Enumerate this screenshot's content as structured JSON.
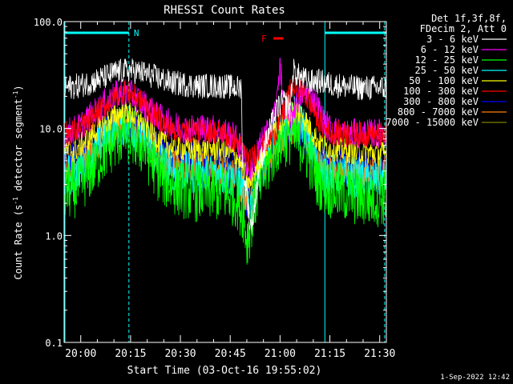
{
  "chart_data": {
    "type": "line",
    "title": "RHESSI Count Rates",
    "xlabel": "Start Time (03-Oct-16 19:55:02)",
    "ylabel_parts": [
      "Count Rate (s",
      "-1",
      " detector segment",
      "-1",
      ")"
    ],
    "yscale": "log",
    "ylim": [
      0.1,
      100
    ],
    "xlim_minutes": [
      0,
      97
    ],
    "y_ticks": [
      {
        "value": 0.1,
        "label": "0.1"
      },
      {
        "value": 1,
        "label": "1.0"
      },
      {
        "value": 10,
        "label": "10.0"
      },
      {
        "value": 100,
        "label": "100.0"
      }
    ],
    "x_ticks": [
      {
        "minute": 5,
        "label": "20:00"
      },
      {
        "minute": 20,
        "label": "20:15"
      },
      {
        "minute": 35,
        "label": "20:30"
      },
      {
        "minute": 50,
        "label": "20:45"
      },
      {
        "minute": 65,
        "label": "21:00"
      },
      {
        "minute": 80,
        "label": "21:15"
      },
      {
        "minute": 95,
        "label": "21:30"
      }
    ],
    "legend_header": [
      "Det 1f,3f,8f,",
      "FDecim 2, Att 0"
    ],
    "legend_placement": "right",
    "series": [
      {
        "name": "3 - 6 keV",
        "color": "#ffffff",
        "points": [
          [
            0,
            24
          ],
          [
            4,
            25
          ],
          [
            8,
            27
          ],
          [
            12,
            30
          ],
          [
            16,
            34
          ],
          [
            20,
            35
          ],
          [
            24,
            33
          ],
          [
            28,
            30
          ],
          [
            32,
            27
          ],
          [
            36,
            26
          ],
          [
            40,
            25
          ],
          [
            44,
            25
          ],
          [
            48,
            25
          ],
          [
            52,
            24
          ],
          [
            53.5,
            24
          ],
          [
            53.6,
            5
          ],
          [
            54,
            4
          ],
          [
            55,
            2.5
          ],
          [
            56,
            1.2
          ],
          [
            57,
            1.5
          ],
          [
            58,
            3
          ],
          [
            59,
            5
          ],
          [
            60,
            6
          ],
          [
            61,
            8
          ],
          [
            62,
            10
          ],
          [
            63,
            12
          ],
          [
            64,
            15
          ],
          [
            65,
            17
          ],
          [
            66,
            18
          ],
          [
            67,
            17
          ],
          [
            68,
            16
          ],
          [
            69,
            35
          ],
          [
            70,
            32
          ],
          [
            72,
            29
          ],
          [
            74,
            27
          ],
          [
            76,
            28
          ],
          [
            78,
            27
          ],
          [
            80,
            26
          ],
          [
            84,
            25
          ],
          [
            88,
            24
          ],
          [
            92,
            24
          ],
          [
            96,
            24
          ]
        ]
      },
      {
        "name": "6 - 12 keV",
        "color": "#ff00ff",
        "points": [
          [
            0,
            9
          ],
          [
            4,
            10
          ],
          [
            8,
            13
          ],
          [
            12,
            17
          ],
          [
            16,
            21
          ],
          [
            18,
            22
          ],
          [
            20,
            21
          ],
          [
            24,
            17
          ],
          [
            28,
            13
          ],
          [
            32,
            11
          ],
          [
            36,
            10
          ],
          [
            40,
            10
          ],
          [
            44,
            10
          ],
          [
            48,
            9.5
          ],
          [
            52,
            8
          ],
          [
            54,
            5.5
          ],
          [
            56,
            4
          ],
          [
            58,
            6
          ],
          [
            60,
            8
          ],
          [
            62,
            10
          ],
          [
            64,
            17
          ],
          [
            65,
            45
          ],
          [
            66,
            15
          ],
          [
            68,
            12
          ],
          [
            70,
            18
          ],
          [
            72,
            22
          ],
          [
            74,
            20
          ],
          [
            76,
            17
          ],
          [
            78,
            12
          ],
          [
            80,
            10
          ],
          [
            84,
            9
          ],
          [
            88,
            9
          ],
          [
            92,
            9
          ],
          [
            96,
            9
          ]
        ]
      },
      {
        "name": "12 - 25 keV",
        "color": "#00ff00",
        "points": [
          [
            0,
            2.5
          ],
          [
            4,
            2.8
          ],
          [
            8,
            4
          ],
          [
            12,
            6
          ],
          [
            16,
            8
          ],
          [
            18,
            9
          ],
          [
            20,
            8.5
          ],
          [
            24,
            6.5
          ],
          [
            28,
            4
          ],
          [
            32,
            3
          ],
          [
            36,
            2.7
          ],
          [
            40,
            2.5
          ],
          [
            44,
            2.6
          ],
          [
            48,
            2.5
          ],
          [
            52,
            2.2
          ],
          [
            54,
            1.6
          ],
          [
            55,
            0.9
          ],
          [
            56,
            1.2
          ],
          [
            58,
            2.5
          ],
          [
            60,
            3.5
          ],
          [
            62,
            5
          ],
          [
            64,
            7
          ],
          [
            66,
            8
          ],
          [
            68,
            8.5
          ],
          [
            70,
            8
          ],
          [
            72,
            7
          ],
          [
            74,
            5
          ],
          [
            76,
            3.5
          ],
          [
            78,
            3
          ],
          [
            80,
            2.7
          ],
          [
            84,
            2.5
          ],
          [
            88,
            2.3
          ],
          [
            92,
            2.2
          ],
          [
            96,
            2.3
          ]
        ]
      },
      {
        "name": "25 - 50 keV",
        "color": "#00ffff",
        "points": [
          [
            0,
            3.5
          ],
          [
            4,
            4
          ],
          [
            8,
            5.5
          ],
          [
            12,
            8
          ],
          [
            16,
            10
          ],
          [
            18,
            11
          ],
          [
            20,
            10.5
          ],
          [
            24,
            8
          ],
          [
            28,
            5.5
          ],
          [
            32,
            4.2
          ],
          [
            36,
            4
          ],
          [
            40,
            3.8
          ],
          [
            44,
            3.8
          ],
          [
            48,
            3.7
          ],
          [
            52,
            3.3
          ],
          [
            54,
            2.5
          ],
          [
            56,
            2
          ],
          [
            58,
            3.5
          ],
          [
            60,
            5
          ],
          [
            62,
            7
          ],
          [
            64,
            9
          ],
          [
            66,
            10
          ],
          [
            68,
            12
          ],
          [
            70,
            13
          ],
          [
            72,
            11
          ],
          [
            74,
            7
          ],
          [
            76,
            5
          ],
          [
            78,
            4
          ],
          [
            80,
            3.8
          ],
          [
            84,
            3.6
          ],
          [
            88,
            3.5
          ],
          [
            92,
            3.4
          ],
          [
            96,
            3.4
          ]
        ]
      },
      {
        "name": "50 - 100 keV",
        "color": "#ffff00",
        "points": [
          [
            0,
            6
          ],
          [
            4,
            6.5
          ],
          [
            8,
            8.5
          ],
          [
            12,
            11
          ],
          [
            16,
            13.5
          ],
          [
            18,
            14.5
          ],
          [
            20,
            14
          ],
          [
            24,
            11
          ],
          [
            28,
            8
          ],
          [
            32,
            6.8
          ],
          [
            36,
            6.5
          ],
          [
            40,
            6.3
          ],
          [
            44,
            6.5
          ],
          [
            48,
            6.3
          ],
          [
            52,
            5.5
          ],
          [
            54,
            4
          ],
          [
            56,
            3
          ],
          [
            58,
            4.5
          ],
          [
            60,
            6
          ],
          [
            62,
            8
          ],
          [
            64,
            10
          ],
          [
            66,
            12
          ],
          [
            68,
            14
          ],
          [
            70,
            15
          ],
          [
            72,
            13
          ],
          [
            74,
            10
          ],
          [
            76,
            8
          ],
          [
            78,
            7
          ],
          [
            80,
            6.5
          ],
          [
            84,
            6.3
          ],
          [
            88,
            6
          ],
          [
            92,
            6
          ],
          [
            96,
            5.8
          ]
        ]
      },
      {
        "name": "100 - 300 keV",
        "color": "#ff0000",
        "points": [
          [
            0,
            9
          ],
          [
            4,
            9.5
          ],
          [
            8,
            12
          ],
          [
            12,
            16
          ],
          [
            16,
            20
          ],
          [
            18,
            22
          ],
          [
            20,
            21
          ],
          [
            24,
            17
          ],
          [
            28,
            13
          ],
          [
            32,
            10
          ],
          [
            36,
            9.5
          ],
          [
            40,
            9.5
          ],
          [
            44,
            9.5
          ],
          [
            48,
            9
          ],
          [
            52,
            7.5
          ],
          [
            54,
            6
          ],
          [
            56,
            5
          ],
          [
            58,
            6
          ],
          [
            60,
            7
          ],
          [
            62,
            8
          ],
          [
            64,
            10
          ],
          [
            66,
            14
          ],
          [
            68,
            22
          ],
          [
            70,
            25
          ],
          [
            72,
            22
          ],
          [
            74,
            17
          ],
          [
            76,
            13
          ],
          [
            78,
            10
          ],
          [
            80,
            9
          ],
          [
            84,
            9
          ],
          [
            88,
            8.8
          ],
          [
            92,
            8.8
          ],
          [
            96,
            8.7
          ]
        ]
      },
      {
        "name": "300 - 800 keV",
        "color": "#0000ff",
        "points": [
          [
            0,
            5
          ],
          [
            4,
            5.5
          ],
          [
            8,
            7
          ],
          [
            12,
            9
          ],
          [
            16,
            11
          ],
          [
            18,
            12
          ],
          [
            20,
            11.5
          ],
          [
            24,
            9
          ],
          [
            28,
            6.5
          ],
          [
            32,
            5.5
          ],
          [
            36,
            5
          ],
          [
            40,
            5
          ],
          [
            44,
            5
          ],
          [
            48,
            4.8
          ],
          [
            52,
            4.3
          ],
          [
            54,
            3
          ],
          [
            55,
            2.2
          ],
          [
            56,
            2
          ],
          [
            58,
            3.2
          ],
          [
            60,
            4.5
          ],
          [
            62,
            6
          ],
          [
            64,
            8
          ],
          [
            66,
            9
          ],
          [
            68,
            10
          ],
          [
            70,
            9.5
          ],
          [
            72,
            8
          ],
          [
            74,
            6
          ],
          [
            76,
            5
          ],
          [
            78,
            4.8
          ],
          [
            80,
            4.6
          ],
          [
            84,
            4.5
          ],
          [
            88,
            4.4
          ],
          [
            92,
            4.3
          ],
          [
            96,
            4.2
          ]
        ]
      },
      {
        "name": "800 - 7000 keV",
        "color": "#ff8000",
        "points": [
          [
            0,
            4
          ],
          [
            4,
            4.5
          ],
          [
            8,
            6
          ],
          [
            12,
            8
          ],
          [
            16,
            10
          ],
          [
            18,
            11
          ],
          [
            20,
            10.5
          ],
          [
            24,
            8
          ],
          [
            28,
            5.5
          ],
          [
            32,
            4.5
          ],
          [
            36,
            4.2
          ],
          [
            40,
            4.2
          ],
          [
            44,
            4.2
          ],
          [
            48,
            4
          ],
          [
            52,
            3.6
          ],
          [
            54,
            2.6
          ],
          [
            56,
            2.2
          ],
          [
            58,
            3.2
          ],
          [
            60,
            4.2
          ],
          [
            62,
            5.5
          ],
          [
            64,
            7
          ],
          [
            66,
            8.5
          ],
          [
            68,
            10
          ],
          [
            70,
            11
          ],
          [
            72,
            9
          ],
          [
            74,
            6.5
          ],
          [
            76,
            5
          ],
          [
            78,
            4.3
          ],
          [
            80,
            4
          ],
          [
            84,
            4
          ],
          [
            88,
            3.9
          ],
          [
            92,
            3.8
          ],
          [
            96,
            3.8
          ]
        ]
      },
      {
        "name": "7000 - 15000 keV",
        "color": "#808000",
        "points": []
      }
    ],
    "annotations": {
      "N_label": "N",
      "F_label": "F",
      "boxes": [
        {
          "x0_minute": 0,
          "x1_minute": 19.5
        },
        {
          "x0_minute": 78.5,
          "x1_minute": 97
        }
      ],
      "dashed_lines_minute": [
        19.5,
        96.5
      ],
      "F_bar_minutes": [
        63,
        66
      ]
    },
    "footer_date": "1-Sep-2022 12:42"
  }
}
